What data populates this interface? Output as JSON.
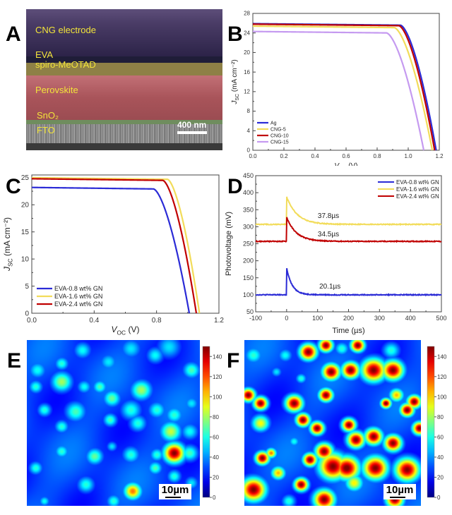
{
  "panels": {
    "A": {
      "letter": "A",
      "layers": [
        {
          "label": "CNG electrode",
          "color": "#3b2d58"
        },
        {
          "label": "EVA",
          "color": "#2e2a4c"
        },
        {
          "label": "spiro-MeOTAD",
          "color": "#8d8044"
        },
        {
          "label": "Perovskite",
          "color": "#b2585e"
        },
        {
          "label": "SnO₂",
          "color": "#6c8a5c"
        },
        {
          "label": "FTO",
          "color": "#8a8a8a"
        }
      ],
      "scale_bar": "400 nm"
    },
    "B": {
      "letter": "B"
    },
    "C": {
      "letter": "C"
    },
    "D": {
      "letter": "D"
    },
    "E": {
      "letter": "E",
      "scale_bar": "10µm"
    },
    "F": {
      "letter": "F",
      "scale_bar": "10µm"
    }
  },
  "chart_data": [
    {
      "id": "B",
      "type": "line",
      "title": "",
      "xlabel": "V_OC (V)",
      "ylabel": "J_SC (mA cm⁻²)",
      "xlim": [
        0,
        1.2
      ],
      "ylim": [
        0,
        28
      ],
      "xticks": [
        0.0,
        0.2,
        0.4,
        0.6,
        0.8,
        1.0,
        1.2
      ],
      "xtick_labels": [
        "0.0",
        "0.2",
        "0.4",
        "0.6",
        "0.8",
        "1.0",
        "1.2"
      ],
      "yticks": [
        0,
        4,
        8,
        12,
        16,
        20,
        24,
        28
      ],
      "ytick_labels": [
        "0",
        "4",
        "8",
        "12",
        "16",
        "20",
        "24",
        "28"
      ],
      "legend": "bottom-left",
      "series": [
        {
          "name": "Ag",
          "color": "#2b2bd6",
          "jsc": 25.9,
          "voc": 1.18,
          "knee": 0.95
        },
        {
          "name": "CNG-5",
          "color": "#f2dc5a",
          "jsc": 25.4,
          "voc": 1.155,
          "knee": 0.91
        },
        {
          "name": "CNG-10",
          "color": "#c00000",
          "jsc": 25.8,
          "voc": 1.17,
          "knee": 0.94
        },
        {
          "name": "CNG-15",
          "color": "#c59af0",
          "jsc": 24.3,
          "voc": 1.1,
          "knee": 0.86
        }
      ]
    },
    {
      "id": "C",
      "type": "line",
      "title": "",
      "xlabel": "V_OC (V)",
      "ylabel": "J_SC (mA cm⁻²)",
      "xlim": [
        0,
        1.2
      ],
      "ylim": [
        0,
        25.5
      ],
      "xticks": [
        0.0,
        0.4,
        0.8,
        1.2
      ],
      "xtick_labels": [
        "0.0",
        "0.4",
        "0.8",
        "1.2"
      ],
      "yticks": [
        0,
        5,
        10,
        15,
        20,
        25
      ],
      "ytick_labels": [
        "0",
        "5",
        "10",
        "15",
        "20",
        "25"
      ],
      "legend": "bottom-left",
      "series": [
        {
          "name": "EVA-0.8 wt% GN",
          "color": "#2b2bd6",
          "jsc": 23.2,
          "voc": 1.01,
          "knee": 0.78
        },
        {
          "name": "EVA-1.6 wt% GN",
          "color": "#f2dc5a",
          "jsc": 25.0,
          "voc": 1.075,
          "knee": 0.87
        },
        {
          "name": "EVA-2.4 wt% GN",
          "color": "#c00000",
          "jsc": 24.8,
          "voc": 1.055,
          "knee": 0.84
        }
      ]
    },
    {
      "id": "D",
      "type": "line",
      "title": "",
      "xlabel": "Time (µs)",
      "ylabel": "Photovoltage (mV)",
      "xlim": [
        -100,
        500
      ],
      "ylim": [
        50,
        450
      ],
      "xticks": [
        -100,
        0,
        100,
        200,
        300,
        400,
        500
      ],
      "xtick_labels": [
        "-100",
        "0",
        "100",
        "200",
        "300",
        "400",
        "500"
      ],
      "yticks": [
        50,
        100,
        150,
        200,
        250,
        300,
        350,
        400,
        450
      ],
      "ytick_labels": [
        "50",
        "100",
        "150",
        "200",
        "250",
        "300",
        "350",
        "400",
        "450"
      ],
      "legend": "top-right",
      "series": [
        {
          "name": "EVA-0.8 wt% GN",
          "color": "#2b2bd6",
          "baseline": 100,
          "peak": 178,
          "tau_us": 20.1,
          "annotation": "20.1µs",
          "ann_x": 140,
          "ann_y": 118
        },
        {
          "name": "EVA-1.6 wt% GN",
          "color": "#f2dc5a",
          "baseline": 307,
          "peak": 388,
          "tau_us": 37.8,
          "annotation": "37.8µs",
          "ann_x": 135,
          "ann_y": 326
        },
        {
          "name": "EVA-2.4 wt% GN",
          "color": "#c00000",
          "baseline": 257,
          "peak": 328,
          "tau_us": 34.5,
          "annotation": "34.5µs",
          "ann_x": 135,
          "ann_y": 272
        }
      ]
    },
    {
      "id": "E",
      "type": "heatmap",
      "title": "",
      "colorbar_range": [
        0,
        150
      ],
      "colorbar_ticks": [
        0,
        20,
        40,
        60,
        80,
        100,
        120,
        140
      ],
      "colorbar_tick_labels": [
        "0",
        "20",
        "40",
        "60",
        "80",
        "100",
        "120",
        "140"
      ],
      "spots": [
        [
          0.06,
          0.18,
          0.05,
          50
        ],
        [
          0.2,
          0.14,
          0.04,
          55
        ],
        [
          0.32,
          0.06,
          0.05,
          50
        ],
        [
          0.47,
          0.13,
          0.05,
          45
        ],
        [
          0.6,
          0.05,
          0.06,
          45
        ],
        [
          0.74,
          0.09,
          0.05,
          50
        ],
        [
          0.82,
          0.04,
          0.07,
          45
        ],
        [
          0.95,
          0.18,
          0.05,
          60
        ],
        [
          0.05,
          0.28,
          0.04,
          55
        ],
        [
          0.2,
          0.25,
          0.06,
          75
        ],
        [
          0.33,
          0.28,
          0.04,
          50
        ],
        [
          0.42,
          0.28,
          0.04,
          60
        ],
        [
          0.49,
          0.35,
          0.05,
          65
        ],
        [
          0.66,
          0.3,
          0.06,
          75
        ],
        [
          0.6,
          0.42,
          0.06,
          55
        ],
        [
          0.1,
          0.42,
          0.04,
          55
        ],
        [
          0.28,
          0.43,
          0.06,
          60
        ],
        [
          0.48,
          0.48,
          0.04,
          60
        ],
        [
          0.64,
          0.5,
          0.05,
          55
        ],
        [
          0.75,
          0.42,
          0.05,
          55
        ],
        [
          0.85,
          0.45,
          0.05,
          55
        ],
        [
          0.95,
          0.38,
          0.04,
          45
        ],
        [
          0.2,
          0.52,
          0.04,
          55
        ],
        [
          0.83,
          0.55,
          0.06,
          80
        ],
        [
          0.94,
          0.55,
          0.05,
          50
        ],
        [
          0.49,
          0.64,
          0.03,
          45
        ],
        [
          0.2,
          0.67,
          0.04,
          55
        ],
        [
          0.39,
          0.7,
          0.05,
          65
        ],
        [
          0.6,
          0.69,
          0.05,
          55
        ],
        [
          0.75,
          0.69,
          0.04,
          55
        ],
        [
          0.85,
          0.68,
          0.06,
          150
        ],
        [
          0.94,
          0.68,
          0.05,
          60
        ],
        [
          0.05,
          0.77,
          0.04,
          55
        ],
        [
          0.74,
          0.77,
          0.04,
          60
        ],
        [
          0.85,
          0.82,
          0.04,
          55
        ],
        [
          0.34,
          0.87,
          0.05,
          55
        ],
        [
          0.61,
          0.91,
          0.05,
          110
        ],
        [
          0.95,
          0.86,
          0.04,
          45
        ],
        [
          0.1,
          0.97,
          0.03,
          50
        ],
        [
          0.5,
          0.97,
          0.04,
          55
        ]
      ]
    },
    {
      "id": "F",
      "type": "heatmap",
      "title": "",
      "colorbar_range": [
        0,
        150
      ],
      "colorbar_ticks": [
        0,
        20,
        40,
        60,
        80,
        100,
        120,
        140
      ],
      "colorbar_tick_labels": [
        "0",
        "20",
        "40",
        "60",
        "80",
        "100",
        "120",
        "140"
      ],
      "spots": [
        [
          0.36,
          0.07,
          0.05,
          150
        ],
        [
          0.46,
          0.03,
          0.04,
          150
        ],
        [
          0.64,
          0.03,
          0.04,
          150
        ],
        [
          0.05,
          0.09,
          0.05,
          55
        ],
        [
          0.23,
          0.09,
          0.04,
          50
        ],
        [
          0.55,
          0.05,
          0.04,
          55
        ],
        [
          0.83,
          0.06,
          0.05,
          55
        ],
        [
          0.49,
          0.19,
          0.05,
          150
        ],
        [
          0.6,
          0.18,
          0.05,
          150
        ],
        [
          0.73,
          0.18,
          0.07,
          150
        ],
        [
          0.84,
          0.18,
          0.06,
          150
        ],
        [
          0.18,
          0.19,
          0.03,
          45
        ],
        [
          0.32,
          0.23,
          0.03,
          55
        ],
        [
          0.02,
          0.33,
          0.04,
          150
        ],
        [
          0.09,
          0.38,
          0.04,
          150
        ],
        [
          0.28,
          0.38,
          0.05,
          150
        ],
        [
          0.46,
          0.33,
          0.04,
          150
        ],
        [
          0.86,
          0.33,
          0.04,
          100
        ],
        [
          0.8,
          0.38,
          0.03,
          150
        ],
        [
          0.96,
          0.37,
          0.04,
          150
        ],
        [
          0.92,
          0.42,
          0.04,
          150
        ],
        [
          0.09,
          0.5,
          0.05,
          90
        ],
        [
          0.33,
          0.48,
          0.04,
          150
        ],
        [
          0.41,
          0.53,
          0.04,
          150
        ],
        [
          0.59,
          0.51,
          0.04,
          150
        ],
        [
          0.63,
          0.6,
          0.05,
          150
        ],
        [
          0.73,
          0.58,
          0.05,
          150
        ],
        [
          0.84,
          0.62,
          0.05,
          150
        ],
        [
          0.99,
          0.53,
          0.04,
          150
        ],
        [
          0.28,
          0.61,
          0.03,
          50
        ],
        [
          0.45,
          0.67,
          0.05,
          150
        ],
        [
          0.1,
          0.71,
          0.04,
          150
        ],
        [
          0.15,
          0.68,
          0.03,
          110
        ],
        [
          0.37,
          0.72,
          0.04,
          150
        ],
        [
          0.5,
          0.76,
          0.08,
          150
        ],
        [
          0.58,
          0.77,
          0.07,
          150
        ],
        [
          0.74,
          0.77,
          0.07,
          150
        ],
        [
          0.92,
          0.78,
          0.07,
          150
        ],
        [
          0.19,
          0.8,
          0.04,
          100
        ],
        [
          0.05,
          0.9,
          0.07,
          150
        ],
        [
          0.32,
          0.87,
          0.04,
          150
        ],
        [
          0.62,
          0.86,
          0.05,
          90
        ],
        [
          0.45,
          0.96,
          0.06,
          150
        ],
        [
          0.85,
          0.96,
          0.05,
          150
        ],
        [
          0.25,
          0.97,
          0.04,
          55
        ]
      ]
    }
  ]
}
